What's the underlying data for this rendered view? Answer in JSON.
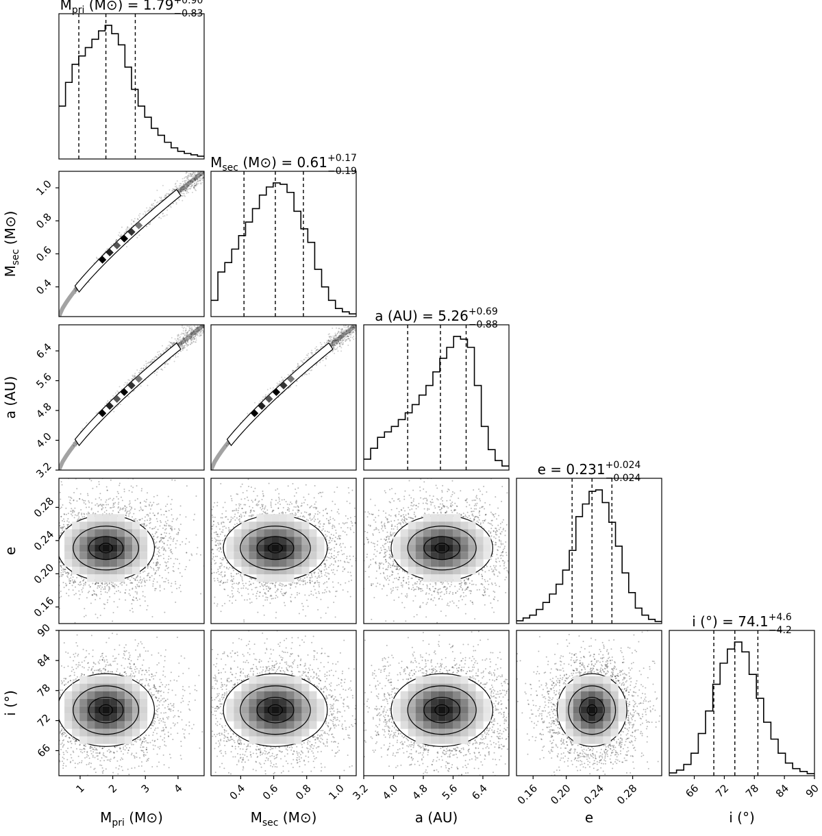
{
  "chart_data": {
    "type": "corner",
    "parameters": [
      {
        "key": "mpri",
        "label": "M",
        "label_sub": "pri",
        "unit": "(M⊙)",
        "title_value": "1.79",
        "title_plus": "+0.90",
        "title_minus": "−0.83",
        "range": [
          0.35,
          4.8
        ],
        "ticks": [
          1,
          2,
          3,
          4
        ],
        "tick_labels": [
          "1",
          "2",
          "3",
          "4"
        ],
        "quantiles": [
          0.96,
          1.79,
          2.69
        ],
        "hist": [
          0.38,
          0.55,
          0.68,
          0.74,
          0.8,
          0.86,
          0.92,
          0.96,
          0.9,
          0.82,
          0.66,
          0.5,
          0.38,
          0.3,
          0.22,
          0.17,
          0.12,
          0.08,
          0.055,
          0.04,
          0.03,
          0.02
        ]
      },
      {
        "key": "msec",
        "label": "M",
        "label_sub": "sec",
        "unit": "(M⊙)",
        "title_value": "0.61",
        "title_plus": "+0.17",
        "title_minus": "−0.19",
        "range": [
          0.22,
          1.1
        ],
        "ticks": [
          0.4,
          0.6,
          0.8,
          1.0
        ],
        "tick_labels": [
          "0.4",
          "0.6",
          "0.8",
          "1.0"
        ],
        "quantiles": [
          0.42,
          0.61,
          0.78
        ],
        "hist": [
          0.12,
          0.33,
          0.4,
          0.5,
          0.6,
          0.7,
          0.8,
          0.9,
          0.96,
          0.99,
          0.98,
          0.92,
          0.78,
          0.65,
          0.55,
          0.35,
          0.22,
          0.12,
          0.06,
          0.035,
          0.02
        ]
      },
      {
        "key": "a",
        "label": "a",
        "label_sub": "",
        "unit": "(AU)",
        "title_value": "5.26",
        "title_plus": "+0.69",
        "title_minus": "−0.88",
        "range": [
          3.2,
          7.1
        ],
        "ticks": [
          3.2,
          4.0,
          4.8,
          5.6,
          6.4
        ],
        "tick_labels": [
          "3.2",
          "4.0",
          "4.8",
          "5.6",
          "6.4"
        ],
        "quantiles": [
          4.38,
          5.26,
          5.95
        ],
        "hist": [
          0.08,
          0.16,
          0.24,
          0.28,
          0.32,
          0.37,
          0.42,
          0.48,
          0.55,
          0.62,
          0.72,
          0.82,
          0.9,
          0.98,
          0.96,
          0.9,
          0.62,
          0.32,
          0.15,
          0.07,
          0.03
        ]
      },
      {
        "key": "e",
        "label": "e",
        "label_sub": "",
        "unit": "",
        "title_value": "0.231",
        "title_plus": "+0.024",
        "title_minus": "−0.024",
        "range": [
          0.14,
          0.315
        ],
        "ticks": [
          0.16,
          0.2,
          0.24,
          0.28
        ],
        "tick_labels": [
          "0.16",
          "0.20",
          "0.24",
          "0.28"
        ],
        "quantiles": [
          0.207,
          0.231,
          0.255
        ],
        "hist": [
          0.02,
          0.04,
          0.06,
          0.1,
          0.15,
          0.21,
          0.28,
          0.38,
          0.52,
          0.76,
          0.85,
          0.94,
          0.95,
          0.86,
          0.72,
          0.55,
          0.36,
          0.22,
          0.11,
          0.06,
          0.03,
          0.015
        ]
      },
      {
        "key": "i",
        "label": "i",
        "label_sub": "",
        "unit": "(°)",
        "title_value": "74.1",
        "title_plus": "+4.6",
        "title_minus": "−4.2",
        "range": [
          61,
          90
        ],
        "ticks": [
          66,
          72,
          78,
          84,
          90
        ],
        "tick_labels": [
          "66",
          "72",
          "78",
          "84",
          "90"
        ],
        "quantiles": [
          69.9,
          74.1,
          78.7
        ],
        "hist": [
          0.02,
          0.04,
          0.08,
          0.16,
          0.3,
          0.46,
          0.65,
          0.8,
          0.9,
          0.95,
          0.88,
          0.72,
          0.55,
          0.38,
          0.26,
          0.16,
          0.09,
          0.05,
          0.03,
          0.015
        ]
      }
    ],
    "pairs": {
      "correlations": {
        "1-0": 0.99,
        "2-0": 0.99,
        "2-1": 0.99,
        "3-0": 0,
        "3-1": 0,
        "3-2": 0,
        "4-0": 0,
        "4-1": 0,
        "4-2": 0,
        "4-3": 0
      },
      "centers": {
        "1-0": [
          1.79,
          0.61
        ],
        "2-0": [
          1.79,
          5.26
        ],
        "2-1": [
          0.61,
          5.26
        ],
        "3-0": [
          1.79,
          0.231
        ],
        "3-1": [
          0.61,
          0.231
        ],
        "3-2": [
          5.3,
          0.231
        ],
        "4-0": [
          1.79,
          74.1
        ],
        "4-1": [
          0.61,
          74.1
        ],
        "4-2": [
          5.3,
          74.1
        ],
        "4-3": [
          0.231,
          74.1
        ]
      },
      "sigmas": {
        "1-0": [
          0.85,
          0.18
        ],
        "2-0": [
          0.85,
          0.78
        ],
        "2-1": [
          0.18,
          0.78
        ],
        "3-0": [
          0.85,
          0.024
        ],
        "3-1": [
          0.18,
          0.024
        ],
        "3-2": [
          0.78,
          0.024
        ],
        "4-0": [
          0.85,
          4.4
        ],
        "4-1": [
          0.18,
          4.4
        ],
        "4-2": [
          0.78,
          4.4
        ],
        "4-3": [
          0.024,
          4.4
        ]
      }
    },
    "histogram_linestyle": "solid black step, dashed quantile lines",
    "grid": false,
    "colors": {
      "line": "#000000",
      "scatter": "#000000",
      "density": "#000000"
    }
  }
}
